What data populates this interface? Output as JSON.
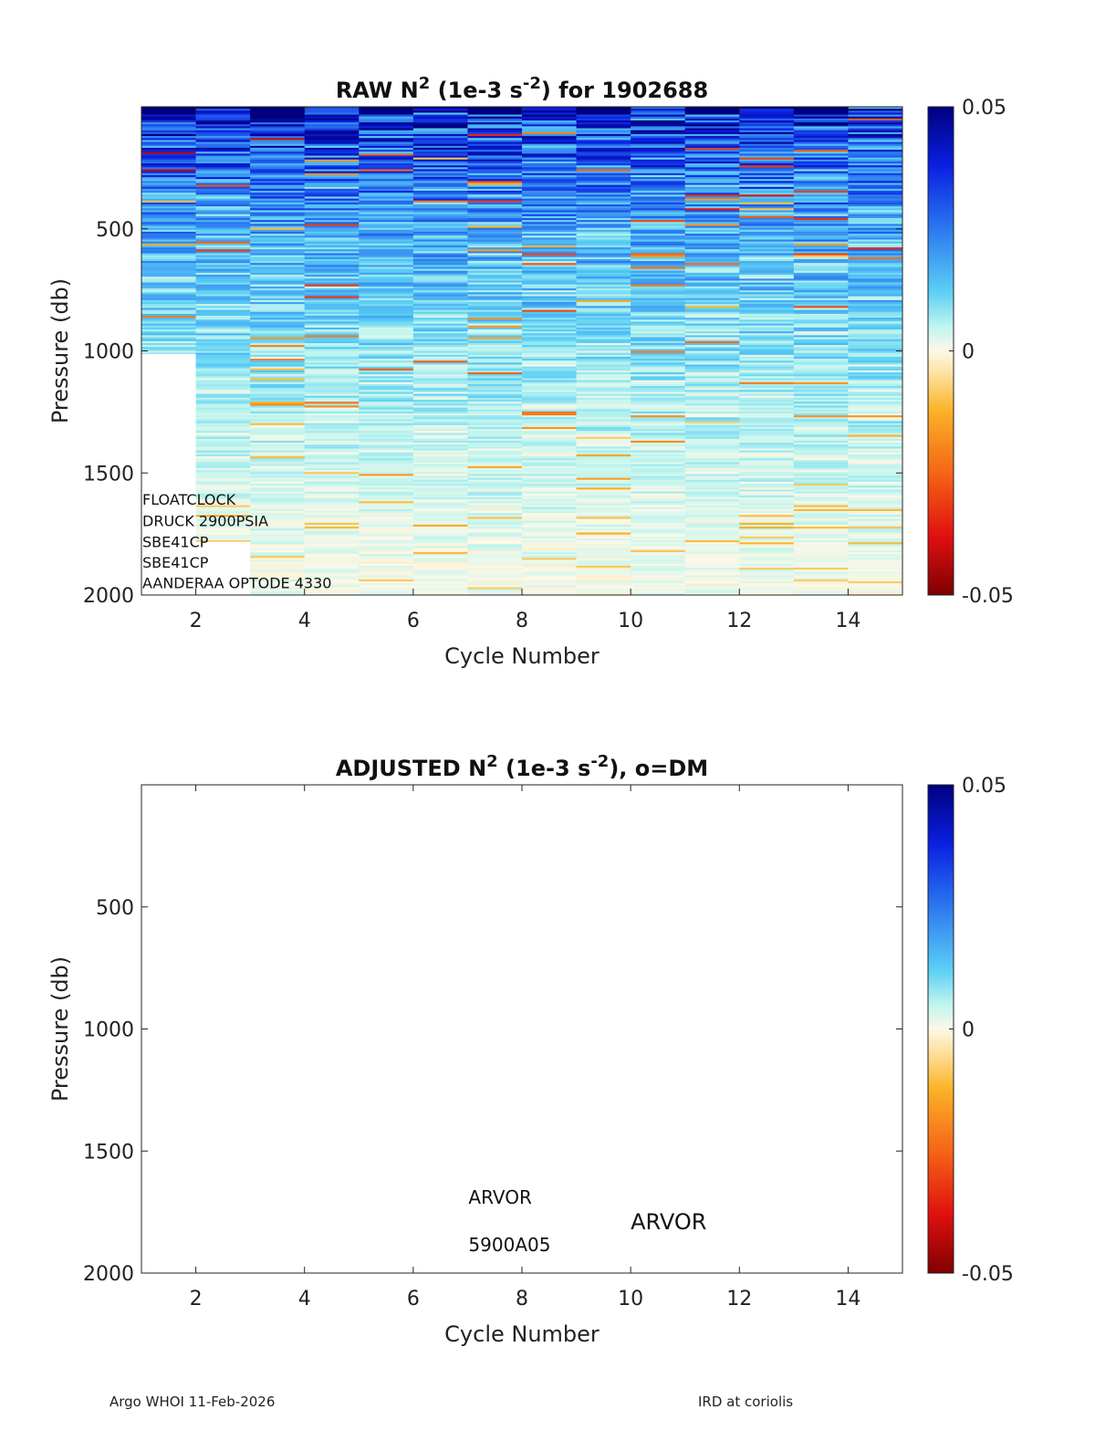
{
  "colors": {
    "axis": "#222222",
    "background": "#ffffff",
    "missing": "#ffffff"
  },
  "footer": {
    "left": "Argo WHOI 11-Feb-2026",
    "right": "IRD at coriolis"
  },
  "chart_data": [
    {
      "id": "raw",
      "type": "heatmap",
      "title": {
        "prefix": "RAW N",
        "sup1": "2",
        "mid": " (1e-3 s",
        "sup2": "-2",
        "suffix": ") for 1902688"
      },
      "xlabel": "Cycle Number",
      "ylabel": "Pressure (db)",
      "xlim": [
        1,
        15
      ],
      "ylim": [
        0,
        2000
      ],
      "y_reversed": true,
      "x_ticks": [
        "2",
        "4",
        "6",
        "8",
        "10",
        "12",
        "14"
      ],
      "y_ticks": [
        "500",
        "1000",
        "1500",
        "2000"
      ],
      "colorbar": {
        "clim": [
          -0.05,
          0.05
        ],
        "ticks": [
          "0.05",
          "0",
          "-0.05"
        ]
      },
      "cycles": [
        1,
        2,
        3,
        4,
        5,
        6,
        7,
        8,
        9,
        10,
        11,
        12,
        13,
        14
      ],
      "max_pressure": [
        1010,
        1780,
        2000,
        2000,
        2010,
        2000,
        2000,
        2000,
        2000,
        2000,
        2000,
        2000,
        2000,
        2000
      ],
      "has_data": true,
      "annotations": [
        {
          "text": "FLOATCLOCK",
          "x": 1,
          "y": 1630
        },
        {
          "text": "DRUCK 2900PSIA",
          "x": 1,
          "y": 1717
        },
        {
          "text": "SBE41CP",
          "x": 1,
          "y": 1803
        },
        {
          "text": "SBE41CP",
          "x": 1,
          "y": 1887
        },
        {
          "text": "AANDERAA OPTODE 4330",
          "x": 1,
          "y": 1972
        }
      ]
    },
    {
      "id": "adjusted",
      "type": "heatmap",
      "title": {
        "prefix": "ADJUSTED N",
        "sup1": "2",
        "mid": " (1e-3 s",
        "sup2": "-2",
        "suffix": "), o=DM"
      },
      "xlabel": "Cycle Number",
      "ylabel": "Pressure (db)",
      "xlim": [
        1,
        15
      ],
      "ylim": [
        0,
        2000
      ],
      "y_reversed": true,
      "x_ticks": [
        "2",
        "4",
        "6",
        "8",
        "10",
        "12",
        "14"
      ],
      "y_ticks": [
        "500",
        "1000",
        "1500",
        "2000"
      ],
      "colorbar": {
        "clim": [
          -0.05,
          0.05
        ],
        "ticks": [
          "0.05",
          "0",
          "-0.05"
        ]
      },
      "has_data": false,
      "annotations": [
        {
          "text": "ARVOR",
          "x": 7,
          "y": 1715,
          "size": "small"
        },
        {
          "text": "ARVOR",
          "x": 10,
          "y": 1820,
          "size": "large"
        },
        {
          "text": "5900A05",
          "x": 7,
          "y": 1910,
          "size": "small"
        }
      ]
    }
  ]
}
